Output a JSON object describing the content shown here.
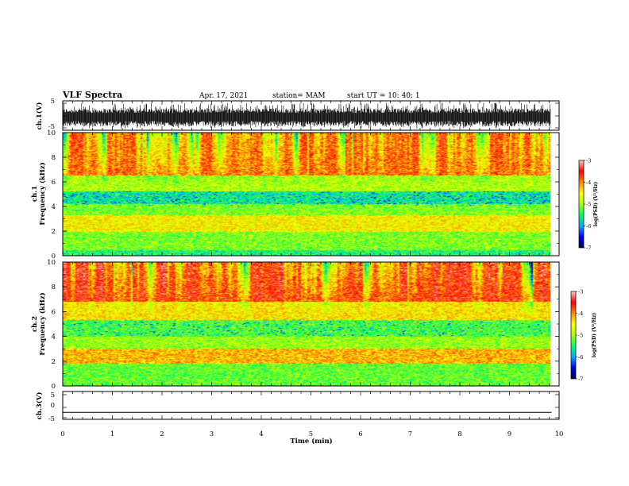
{
  "header": {
    "title": "VLF Spectra",
    "date": "Apr. 17, 2021",
    "station": "station= MAM",
    "start": "start  UT =   10: 40: 1"
  },
  "chart_data": [
    {
      "type": "line",
      "name": "ch1_waveform",
      "ylabel": "ch.1(V)",
      "ylim": [
        -5,
        5
      ],
      "yticks": [
        "5",
        "-5"
      ],
      "xlim": [
        0,
        10
      ],
      "trace_band_v": [
        -4.4,
        4.4
      ]
    },
    {
      "type": "heatmap",
      "name": "ch1_spectrogram",
      "ylabel_top": "ch.1",
      "ylabel": "Frequency (kHz)",
      "ylim": [
        0,
        10
      ],
      "yticks": [
        "0",
        "2",
        "4",
        "6",
        "8",
        "10"
      ],
      "xlim": [
        0,
        9.85
      ],
      "colorbar": {
        "range": [
          -7,
          -3
        ],
        "ticks": [
          "-3",
          "-4",
          "-5",
          "-6",
          "-7"
        ],
        "label": "log(PSD) (V²/Hz)"
      },
      "bands_khz": [
        {
          "range": [
            0,
            0.4
          ],
          "level": -5.5
        },
        {
          "range": [
            0.4,
            1.9
          ],
          "level": -5.1
        },
        {
          "range": [
            1.9,
            3.3
          ],
          "level": -4.5
        },
        {
          "range": [
            3.3,
            4.2
          ],
          "level": -5.1
        },
        {
          "range": [
            4.2,
            5.2
          ],
          "level": -5.6
        },
        {
          "range": [
            5.2,
            6.5
          ],
          "level": -4.9
        },
        {
          "range": [
            6.5,
            10
          ],
          "level": -3.9
        }
      ]
    },
    {
      "type": "heatmap",
      "name": "ch2_spectrogram",
      "ylabel_top": "ch.2",
      "ylabel": "Frequency (kHz)",
      "ylim": [
        0,
        10
      ],
      "yticks": [
        "0",
        "2",
        "4",
        "6",
        "8",
        "10"
      ],
      "xlim": [
        0,
        9.85
      ],
      "colorbar": {
        "range": [
          -7,
          -3
        ],
        "ticks": [
          "-3",
          "-4",
          "-5",
          "-6",
          "-7"
        ],
        "label": "log(PSD) (V²/Hz)"
      },
      "bands_khz": [
        {
          "range": [
            0,
            1.8
          ],
          "level": -5.2
        },
        {
          "range": [
            1.8,
            3.0
          ],
          "level": -4.2
        },
        {
          "range": [
            3.0,
            4.0
          ],
          "level": -5.0
        },
        {
          "range": [
            4.0,
            5.3
          ],
          "level": -5.3
        },
        {
          "range": [
            5.3,
            6.8
          ],
          "level": -4.4
        },
        {
          "range": [
            6.8,
            10
          ],
          "level": -3.6
        }
      ]
    },
    {
      "type": "line",
      "name": "ch3_waveform",
      "ylabel": "ch.3(V)",
      "ylim": [
        -5,
        5
      ],
      "yticks": [
        "5",
        "0",
        "-5"
      ],
      "xlim": [
        0,
        10
      ],
      "x": [
        0,
        9.85
      ],
      "y": [
        -2.5,
        -2.5
      ],
      "xlabel": "Time (min)",
      "xticks": [
        "0",
        "1",
        "2",
        "3",
        "4",
        "5",
        "6",
        "7",
        "8",
        "9",
        "10"
      ]
    }
  ],
  "colors": {
    "colormap": [
      "#000055",
      "#0000ff",
      "#00aaff",
      "#00ff66",
      "#aaff00",
      "#ffff00",
      "#ff8800",
      "#ff0000",
      "#ffc8c8"
    ],
    "trace": "#000000"
  }
}
